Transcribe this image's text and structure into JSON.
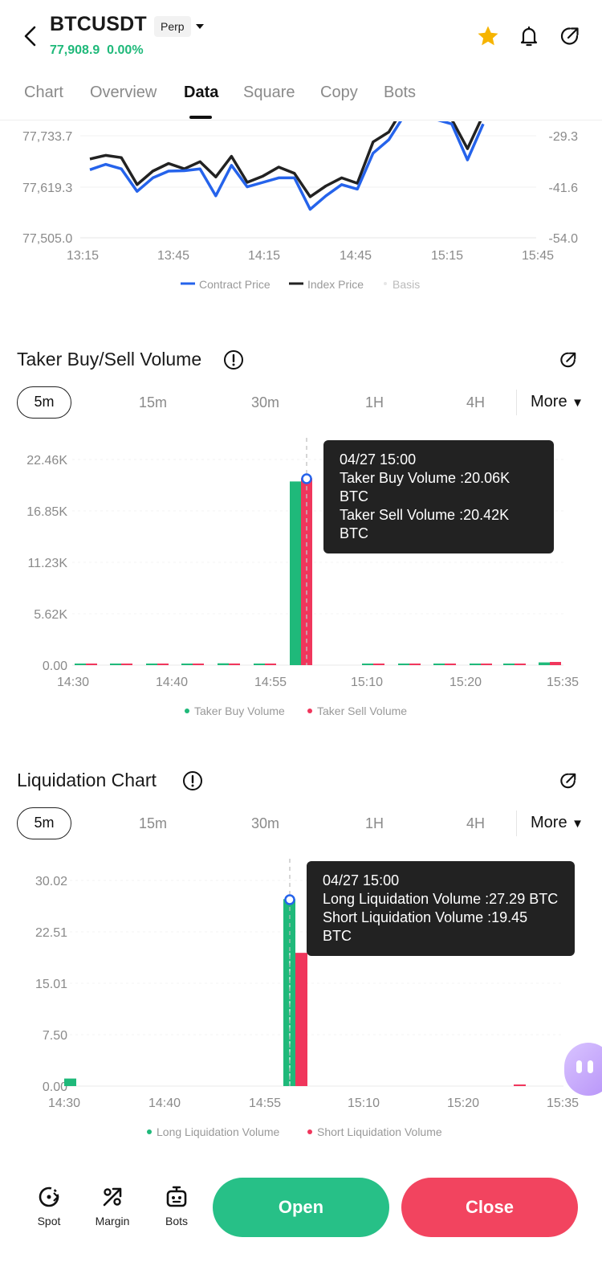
{
  "header": {
    "symbol": "BTCUSDT",
    "badge": "Perp",
    "price": "77,908.9",
    "change": "0.00%"
  },
  "tabs": [
    "Chart",
    "Overview",
    "Data",
    "Square",
    "Copy",
    "Bots"
  ],
  "active_tab": "Data",
  "basis_chart": {
    "left_ticks": [
      "77,733.7",
      "77,619.3",
      "77,505.0"
    ],
    "right_ticks": [
      "-29.3",
      "-41.6",
      "-54.0"
    ],
    "x_ticks": [
      "13:15",
      "13:45",
      "14:15",
      "14:45",
      "15:15",
      "15:45"
    ],
    "legend": [
      "Contract Price",
      "Index Price",
      "Basis"
    ]
  },
  "taker": {
    "title": "Taker Buy/Sell Volume",
    "intervals": [
      "5m",
      "15m",
      "30m",
      "1H",
      "4H"
    ],
    "more": "More",
    "y_ticks": [
      "22.46K",
      "16.85K",
      "11.23K",
      "5.62K",
      "0.00"
    ],
    "x_ticks": [
      "14:30",
      "14:40",
      "14:55",
      "15:10",
      "15:20",
      "15:35"
    ],
    "legend": [
      "Taker Buy Volume",
      "Taker Sell Volume"
    ],
    "tooltip": {
      "time": "04/27 15:00",
      "line1": "Taker Buy Volume :20.06K BTC",
      "line2": "Taker Sell Volume :20.42K BTC"
    }
  },
  "liquidation": {
    "title": "Liquidation Chart",
    "intervals": [
      "5m",
      "15m",
      "30m",
      "1H",
      "4H"
    ],
    "more": "More",
    "y_ticks": [
      "30.02",
      "22.51",
      "15.01",
      "7.50",
      "0.00"
    ],
    "x_ticks": [
      "14:30",
      "14:40",
      "14:55",
      "15:10",
      "15:20",
      "15:35"
    ],
    "legend": [
      "Long Liquidation Volume",
      "Short Liquidation Volume"
    ],
    "tooltip": {
      "time": "04/27 15:00",
      "line1": "Long Liquidation Volume :27.29 BTC",
      "line2": "Short Liquidation Volume :19.45 BTC"
    }
  },
  "bottom": {
    "spot": "Spot",
    "margin": "Margin",
    "bots": "Bots",
    "open": "Open",
    "close": "Close"
  },
  "colors": {
    "buy": "#1fb97a",
    "sell": "#f0365c",
    "contract": "#2563eb",
    "index": "#222222",
    "open_btn": "#27c087",
    "close_btn": "#f2445f"
  },
  "chart_data": [
    {
      "type": "line",
      "x": [
        "13:15",
        "13:20",
        "13:25",
        "13:30",
        "13:35",
        "13:40",
        "13:45",
        "13:50",
        "13:55",
        "14:00",
        "14:05",
        "14:10",
        "14:15",
        "14:20",
        "14:25",
        "14:30",
        "14:35",
        "14:40",
        "14:45",
        "14:50",
        "14:55",
        "15:00",
        "15:05",
        "15:10",
        "15:15",
        "15:20"
      ],
      "series": [
        {
          "name": "Contract Price",
          "values": [
            77658,
            77670,
            77660,
            77610,
            77640,
            77655,
            77656,
            77660,
            77600,
            77668,
            77620,
            77630,
            77640,
            77640,
            77570,
            77600,
            77625,
            77615,
            77695,
            77725,
            77780,
            77775,
            77770,
            77760,
            77680,
            77760
          ]
        },
        {
          "name": "Index Price",
          "values": [
            77682,
            77690,
            77685,
            77625,
            77655,
            77672,
            77660,
            77676,
            77642,
            77688,
            77630,
            77644,
            77664,
            77650,
            77598,
            77622,
            77640,
            77628,
            77720,
            77742,
            77800,
            77795,
            77792,
            77770,
            77705,
            77780
          ]
        }
      ],
      "left_axis": {
        "ticks": [
          77505.0,
          77619.3,
          77733.7
        ]
      },
      "right_axis": {
        "ticks": [
          -54.0,
          -41.6,
          -29.3
        ]
      }
    },
    {
      "type": "bar",
      "title": "Taker Buy/Sell Volume",
      "categories": [
        "14:30",
        "14:35",
        "14:40",
        "14:45",
        "14:50",
        "14:55",
        "15:00",
        "15:05",
        "15:10",
        "15:15",
        "15:20",
        "15:25",
        "15:30",
        "15:35"
      ],
      "series": [
        {
          "name": "Taker Buy Volume",
          "values": [
            0.05,
            0.03,
            0.04,
            0.12,
            0.2,
            0.1,
            20.06,
            0.0,
            0.03,
            0.04,
            0.05,
            0.04,
            0.15,
            0.3
          ]
        },
        {
          "name": "Taker Sell Volume",
          "values": [
            0.06,
            0.03,
            0.05,
            0.14,
            0.18,
            0.08,
            20.42,
            0.0,
            0.04,
            0.05,
            0.04,
            0.05,
            0.1,
            0.35
          ]
        }
      ],
      "ylim": [
        0,
        22.46
      ],
      "y_unit": "K BTC"
    },
    {
      "type": "bar",
      "title": "Liquidation Chart",
      "categories": [
        "14:30",
        "14:35",
        "14:40",
        "14:45",
        "14:50",
        "14:55",
        "15:00",
        "15:05",
        "15:10",
        "15:15",
        "15:20",
        "15:25",
        "15:30",
        "15:35"
      ],
      "series": [
        {
          "name": "Long Liquidation Volume",
          "values": [
            1.1,
            0,
            0,
            0,
            0,
            0,
            27.29,
            0,
            0,
            0,
            0,
            0,
            0,
            0
          ]
        },
        {
          "name": "Short Liquidation Volume",
          "values": [
            0,
            0,
            0,
            0,
            0,
            0,
            19.45,
            0,
            0,
            0,
            0,
            0,
            0.1,
            0
          ]
        }
      ],
      "ylim": [
        0,
        30.02
      ],
      "y_unit": "BTC"
    }
  ]
}
